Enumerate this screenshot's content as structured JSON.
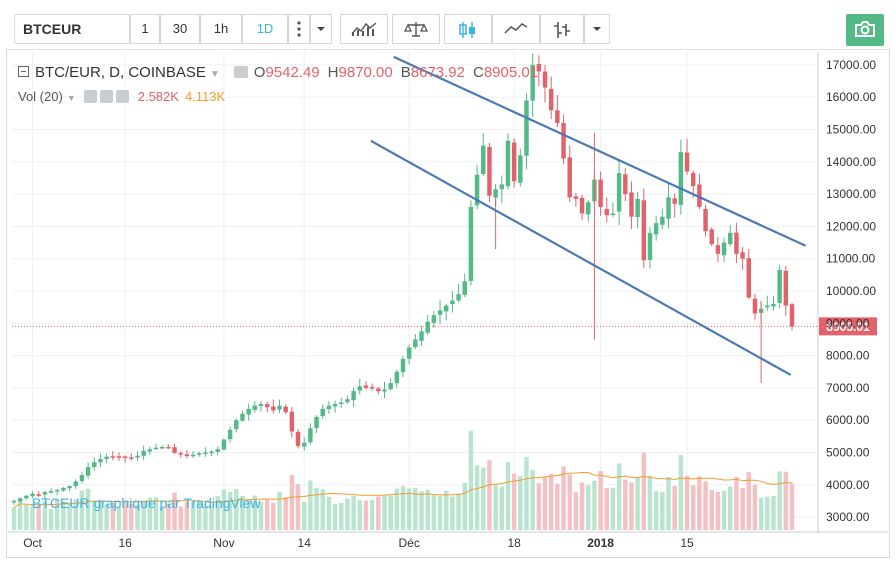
{
  "toolbar": {
    "symbol": "BTCEUR",
    "intervals": [
      "1",
      "30",
      "1h",
      "1D"
    ],
    "active_interval": "1D"
  },
  "legend": {
    "title": "BTC/EUR, D, COINBASE",
    "open_label": "O",
    "open": "9542.49",
    "high_label": "H",
    "high": "9870.00",
    "low_label": "B",
    "low": "8673.92",
    "close_label": "C",
    "close": "8905.01"
  },
  "volume_legend": {
    "label": "Vol (20)",
    "value": "2.582K",
    "ma_value": "4.113K"
  },
  "watermark": "BTCEUR graphique par TradingView",
  "colors": {
    "up": "#53b987",
    "down": "#e2626b",
    "vol_up": "#b9e4cf",
    "vol_down": "#f3c0c4",
    "vol_ma": "#f39c2c",
    "trendline": "#4a7ab3",
    "accent": "#3bb3e4",
    "price_line": "#e2626b"
  },
  "chart_data": {
    "type": "candlestick",
    "title": "BTC/EUR, D, COINBASE",
    "price_axis": {
      "range": [
        2600,
        17400
      ],
      "ticks": [
        "3000.00",
        "4000.00",
        "5000.00",
        "6000.00",
        "7000.00",
        "8000.00",
        "9000.00",
        "10000.00",
        "11000.00",
        "12000.00",
        "13000.00",
        "14000.00",
        "15000.00",
        "16000.00",
        "17000.00"
      ]
    },
    "last_price": "8905.01",
    "time_axis": {
      "labels": [
        "Oct",
        "16",
        "Nov",
        "14",
        "Déc",
        "18",
        "2018",
        "15"
      ],
      "start_date": "2017-09-28",
      "label_dates": [
        "2017-10-01",
        "2017-10-16",
        "2017-11-01",
        "2017-11-14",
        "2017-12-01",
        "2017-12-18",
        "2018-01-01",
        "2018-01-15"
      ]
    },
    "closes": [
      3500,
      3580,
      3660,
      3720,
      3690,
      3770,
      3800,
      3840,
      3900,
      3960,
      4100,
      4300,
      4550,
      4700,
      4800,
      4870,
      4860,
      4880,
      4850,
      4830,
      4900,
      5050,
      5100,
      5150,
      5170,
      5140,
      4990,
      4960,
      4890,
      4930,
      4980,
      5000,
      5030,
      5100,
      5400,
      5700,
      6000,
      6200,
      6350,
      6450,
      6500,
      6400,
      6300,
      6450,
      6250,
      5650,
      5200,
      5300,
      5750,
      6100,
      6350,
      6450,
      6500,
      6550,
      6650,
      6900,
      7050,
      7000,
      7000,
      6900,
      6950,
      7150,
      7500,
      7900,
      8250,
      8500,
      8750,
      9050,
      9250,
      9400,
      9550,
      9700,
      9900,
      10300,
      12600,
      13600,
      14500,
      12950,
      13150,
      13300,
      14650,
      13400,
      14200,
      15900,
      17000,
      16800,
      16300,
      15600,
      15200,
      14100,
      12900,
      12850,
      12400,
      12750,
      13450,
      12600,
      12350,
      12400,
      13650,
      13000,
      12300,
      12850,
      10950,
      11800,
      12100,
      12300,
      12900,
      12700,
      14300,
      13700,
      13250,
      12600,
      11850,
      11450,
      11150,
      11500,
      11800,
      11150,
      11000,
      9800,
      9300,
      9450,
      9550,
      9600,
      10650,
      9550,
      8905
    ]
  }
}
